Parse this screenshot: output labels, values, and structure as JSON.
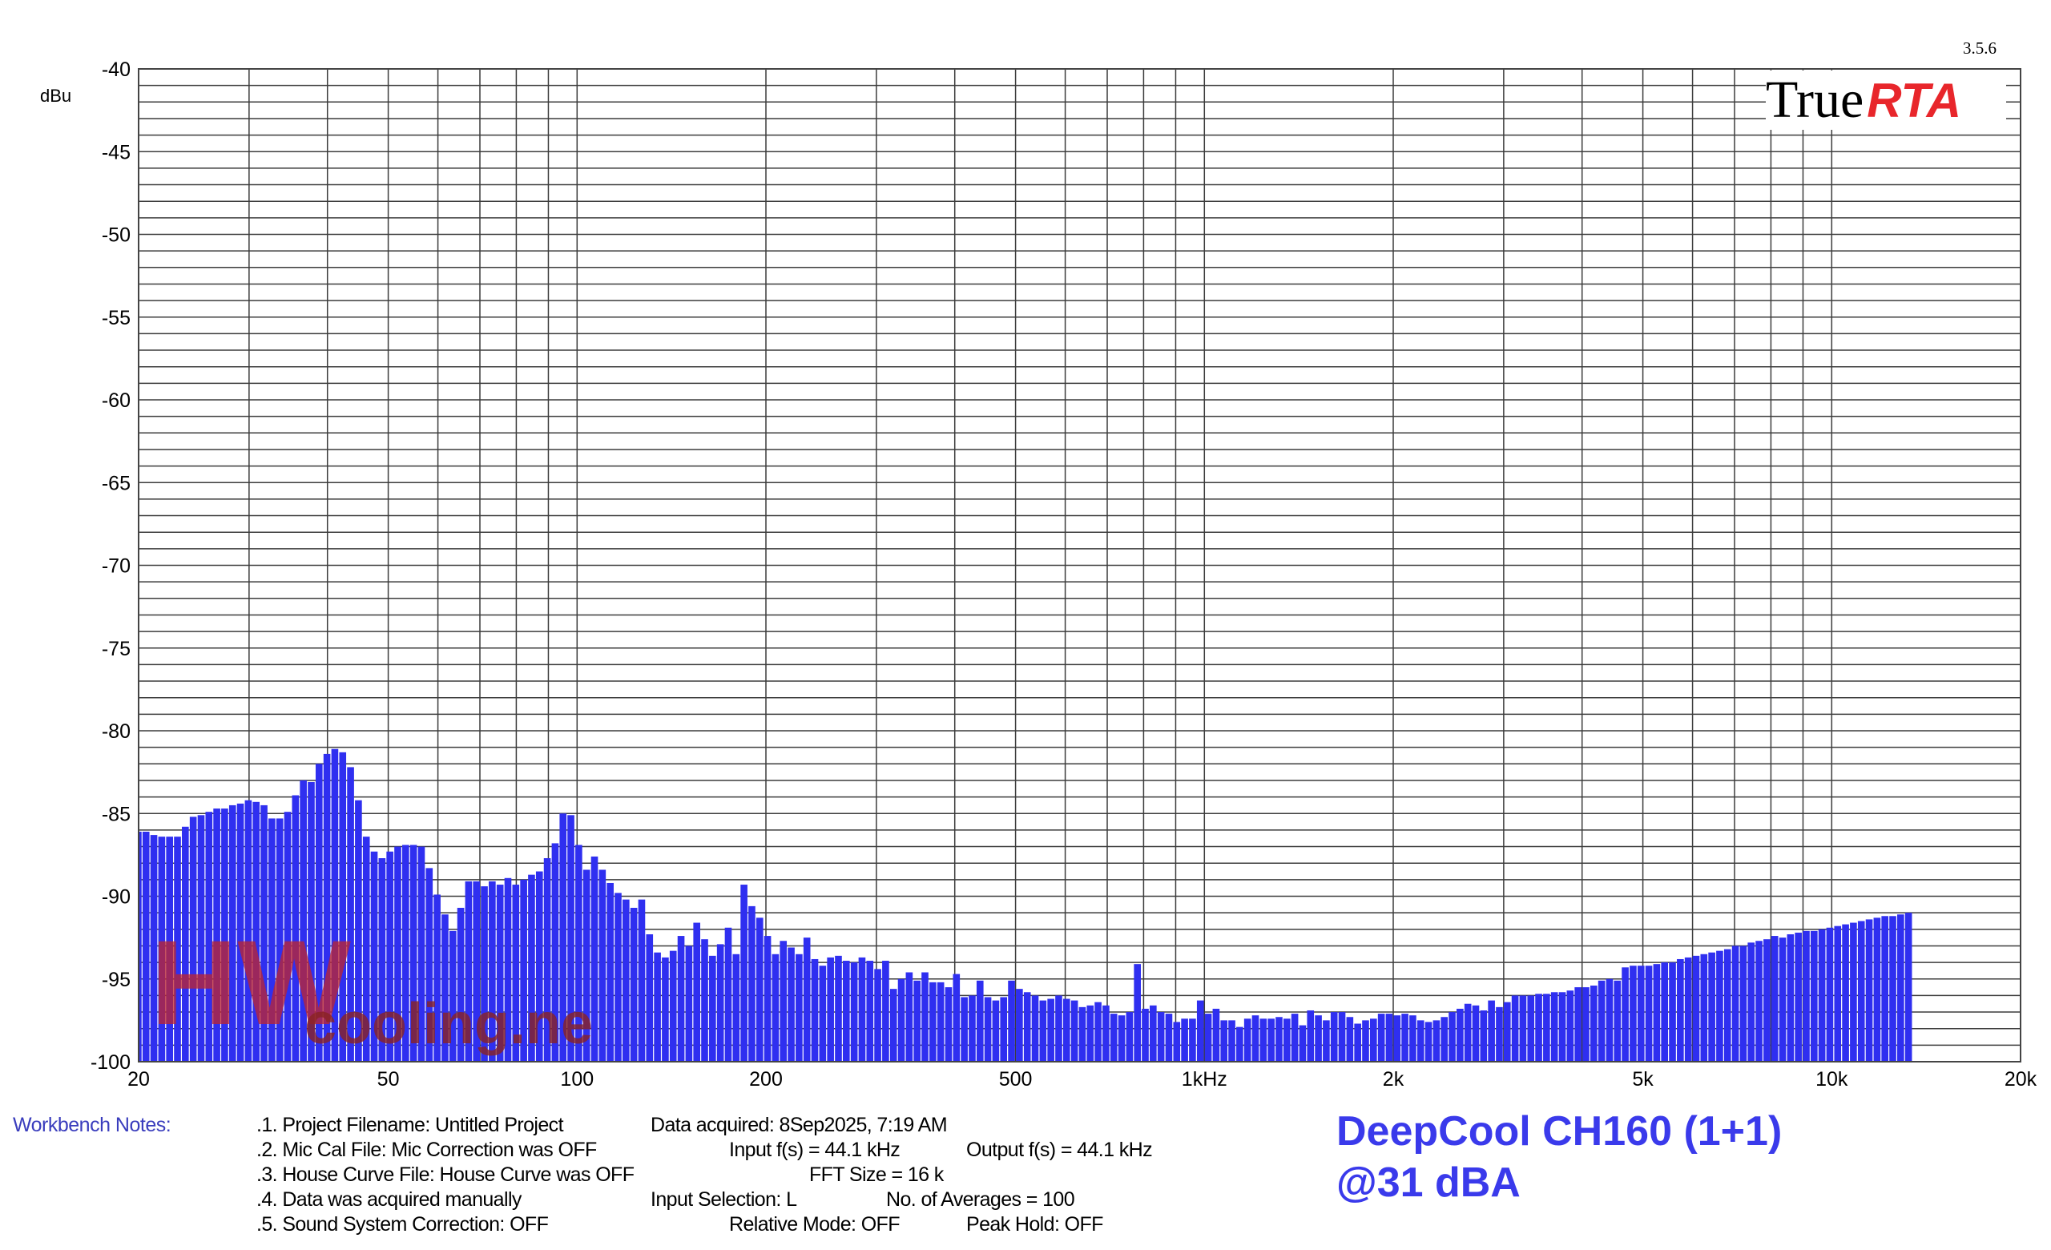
{
  "version": "3.5.6",
  "brand": {
    "true_text": "True",
    "rta_text": "RTA"
  },
  "watermark": {
    "hw": "HW",
    "site": "cooling.net"
  },
  "chart_data": {
    "type": "bar",
    "ylabel": "dBu",
    "ylim": [
      -100,
      -40
    ],
    "yticks": [
      -40,
      -45,
      -50,
      -55,
      -60,
      -65,
      -70,
      -75,
      -80,
      -85,
      -90,
      -95,
      -100
    ],
    "ytick_labels": [
      "-40",
      "-45",
      "-50",
      "-55",
      "-60",
      "-65",
      "-70",
      "-75",
      "-80",
      "-85",
      "-90",
      "-95",
      "-100"
    ],
    "x_scale": "log",
    "xlim": [
      20,
      20000
    ],
    "xticks": [
      20,
      50,
      100,
      200,
      500,
      1000,
      2000,
      5000,
      10000,
      20000
    ],
    "xtick_labels": [
      "20",
      "50",
      "100",
      "200",
      "500",
      "1kHz",
      "2k",
      "5k",
      "10k",
      "20k"
    ],
    "grid": true,
    "series": [
      {
        "color": "#2f2ff0",
        "bands_per_octave": 24,
        "values": [
          -86.1,
          -86.1,
          -86.3,
          -86.4,
          -86.4,
          -86.4,
          -85.8,
          -85.2,
          -85.1,
          -84.9,
          -84.7,
          -84.7,
          -84.5,
          -84.4,
          -84.2,
          -84.3,
          -84.5,
          -85.3,
          -85.3,
          -84.9,
          -83.9,
          -83.0,
          -83.1,
          -82.0,
          -81.4,
          -81.1,
          -81.3,
          -82.2,
          -84.2,
          -86.4,
          -87.3,
          -87.7,
          -87.3,
          -87.0,
          -86.9,
          -86.9,
          -87.0,
          -88.3,
          -89.9,
          -91.1,
          -92.1,
          -90.7,
          -89.1,
          -89.1,
          -89.4,
          -89.1,
          -89.3,
          -88.9,
          -89.3,
          -89.0,
          -88.7,
          -88.5,
          -87.7,
          -86.8,
          -85.0,
          -85.1,
          -86.9,
          -88.4,
          -87.6,
          -88.4,
          -89.2,
          -89.8,
          -90.2,
          -90.7,
          -90.2,
          -92.3,
          -93.4,
          -93.7,
          -93.3,
          -92.4,
          -93.0,
          -91.6,
          -92.6,
          -93.6,
          -92.9,
          -91.9,
          -93.5,
          -89.3,
          -90.6,
          -91.3,
          -92.4,
          -93.5,
          -92.7,
          -93.1,
          -93.5,
          -92.5,
          -93.8,
          -94.2,
          -93.7,
          -93.6,
          -93.9,
          -94.0,
          -93.7,
          -93.9,
          -94.4,
          -93.9,
          -95.6,
          -95.0,
          -94.6,
          -95.1,
          -94.6,
          -95.2,
          -95.2,
          -95.5,
          -94.7,
          -96.1,
          -96.0,
          -95.1,
          -96.1,
          -96.3,
          -96.1,
          -95.1,
          -95.6,
          -95.8,
          -96.0,
          -96.3,
          -96.2,
          -96.0,
          -96.2,
          -96.3,
          -96.7,
          -96.6,
          -96.4,
          -96.6,
          -97.1,
          -97.2,
          -97.0,
          -94.1,
          -96.8,
          -96.6,
          -97.0,
          -97.1,
          -97.6,
          -97.4,
          -97.4,
          -96.3,
          -97.1,
          -96.8,
          -97.5,
          -97.5,
          -97.9,
          -97.4,
          -97.2,
          -97.4,
          -97.4,
          -97.3,
          -97.4,
          -97.1,
          -97.8,
          -96.9,
          -97.2,
          -97.5,
          -97.0,
          -97.0,
          -97.3,
          -97.7,
          -97.5,
          -97.4,
          -97.1,
          -97.1,
          -97.2,
          -97.1,
          -97.2,
          -97.5,
          -97.6,
          -97.5,
          -97.3,
          -97.0,
          -96.8,
          -96.5,
          -96.6,
          -96.9,
          -96.3,
          -96.7,
          -96.4,
          -96.0,
          -96.0,
          -96.0,
          -95.9,
          -95.9,
          -95.8,
          -95.8,
          -95.7,
          -95.5,
          -95.5,
          -95.4,
          -95.1,
          -95.0,
          -95.1,
          -94.3,
          -94.2,
          -94.2,
          -94.2,
          -94.1,
          -94.0,
          -94.0,
          -93.8,
          -93.7,
          -93.6,
          -93.5,
          -93.4,
          -93.3,
          -93.2,
          -93.0,
          -93.0,
          -92.8,
          -92.7,
          -92.6,
          -92.4,
          -92.5,
          -92.3,
          -92.2,
          -92.1,
          -92.1,
          -92.0,
          -91.9,
          -91.8,
          -91.7,
          -91.6,
          -91.5,
          -91.4,
          -91.3,
          -91.2,
          -91.2,
          -91.1,
          -91.0
        ]
      }
    ]
  },
  "workbench": {
    "label": "Workbench Notes:",
    "lines": [
      ".1. Project Filename: Untitled Project",
      ".2. Mic Cal File: Mic Correction was OFF",
      ".3. House Curve File: House Curve was OFF",
      ".4. Data was acquired manually",
      ".5. Sound System Correction: OFF"
    ],
    "data_acquired": "Data acquired: 8Sep2025, 7:19 AM",
    "input_fs": "Input f(s) = 44.1 kHz",
    "output_fs": "Output f(s) = 44.1 kHz",
    "fft_size": "FFT Size = 16 k",
    "input_selection": "Input Selection: L",
    "averages": "No. of Averages = 100",
    "relative_mode": "Relative Mode:  OFF",
    "peak_hold": "Peak Hold: OFF"
  },
  "title_line1": "DeepCool CH160 (1+1)",
  "title_line2": "@31 dBA"
}
